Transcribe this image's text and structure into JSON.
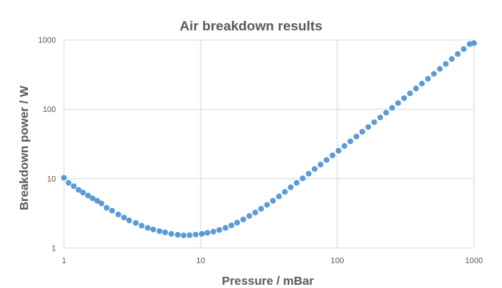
{
  "chart_data": {
    "type": "scatter",
    "title": "Air breakdown results",
    "xlabel": "Pressure / mBar",
    "ylabel": "Breakdown power / W",
    "x_scale": "log",
    "y_scale": "log",
    "xlim": [
      1,
      1000
    ],
    "ylim": [
      1,
      1000
    ],
    "x_ticks": [
      1,
      10,
      100,
      1000
    ],
    "y_ticks": [
      1,
      10,
      100,
      1000
    ],
    "x_tick_labels": [
      "1",
      "10",
      "100",
      "1000"
    ],
    "y_tick_labels": [
      "1",
      "10",
      "100",
      "1000"
    ],
    "grid": true,
    "legend": "none",
    "series": [
      {
        "name": "",
        "points": [
          [
            1.0,
            10.3
          ],
          [
            1.08,
            8.7
          ],
          [
            1.18,
            7.8
          ],
          [
            1.28,
            6.9
          ],
          [
            1.38,
            6.3
          ],
          [
            1.5,
            5.7
          ],
          [
            1.62,
            5.2
          ],
          [
            1.75,
            4.8
          ],
          [
            1.88,
            4.4
          ],
          [
            2.05,
            3.8
          ],
          [
            2.25,
            3.45
          ],
          [
            2.5,
            3.05
          ],
          [
            2.75,
            2.75
          ],
          [
            3.0,
            2.5
          ],
          [
            3.35,
            2.3
          ],
          [
            3.7,
            2.1
          ],
          [
            4.1,
            1.95
          ],
          [
            4.5,
            1.85
          ],
          [
            5.0,
            1.75
          ],
          [
            5.5,
            1.68
          ],
          [
            6.1,
            1.6
          ],
          [
            6.8,
            1.55
          ],
          [
            7.5,
            1.52
          ],
          [
            8.3,
            1.53
          ],
          [
            9.2,
            1.56
          ],
          [
            10.2,
            1.6
          ],
          [
            11.2,
            1.66
          ],
          [
            12.4,
            1.72
          ],
          [
            13.7,
            1.82
          ],
          [
            15.2,
            1.95
          ],
          [
            16.8,
            2.12
          ],
          [
            18.5,
            2.32
          ],
          [
            20.5,
            2.58
          ],
          [
            22.7,
            2.9
          ],
          [
            25.1,
            3.25
          ],
          [
            27.7,
            3.68
          ],
          [
            30.6,
            4.2
          ],
          [
            33.8,
            4.8
          ],
          [
            37.4,
            5.55
          ],
          [
            41.3,
            6.45
          ],
          [
            45.6,
            7.5
          ],
          [
            50.4,
            8.7
          ],
          [
            55.8,
            10.1
          ],
          [
            61.7,
            11.8
          ],
          [
            68.2,
            13.8
          ],
          [
            75.4,
            16.0
          ],
          [
            83.4,
            18.6
          ],
          [
            92.2,
            21.7
          ],
          [
            102,
            25.3
          ],
          [
            112.7,
            29.6
          ],
          [
            124.6,
            34.6
          ],
          [
            137.8,
            40.5
          ],
          [
            152.3,
            47.5
          ],
          [
            168.4,
            55.6
          ],
          [
            186.2,
            65.2
          ],
          [
            205.9,
            76.4
          ],
          [
            227.6,
            89.6
          ],
          [
            251.7,
            105
          ],
          [
            278.3,
            123
          ],
          [
            307.7,
            145
          ],
          [
            340.2,
            170
          ],
          [
            376.2,
            200
          ],
          [
            415.9,
            235
          ],
          [
            459.9,
            276
          ],
          [
            508.5,
            325
          ],
          [
            562.2,
            383
          ],
          [
            621.6,
            451
          ],
          [
            687.3,
            532
          ],
          [
            760,
            628
          ],
          [
            840.3,
            740
          ],
          [
            929.2,
            873
          ],
          [
            1000,
            900
          ]
        ]
      }
    ],
    "colors": {
      "marker": "#5b9bd5",
      "grid": "#d9d9d9",
      "text": "#595959",
      "axis_title": "#595959"
    }
  }
}
